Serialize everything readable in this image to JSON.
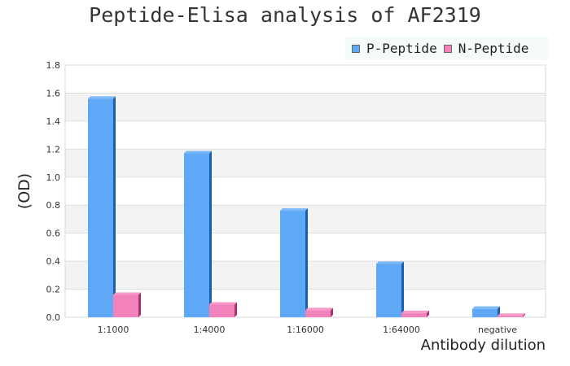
{
  "chart_data": {
    "type": "bar",
    "title": "Peptide-Elisa analysis of AF2319",
    "xlabel": "Antibody dilution",
    "ylabel": "(OD)",
    "categories": [
      "1:1000",
      "1:4000",
      "1:16000",
      "1:64000",
      "negative"
    ],
    "series": [
      {
        "name": "P-Peptide",
        "values": [
          1.56,
          1.17,
          0.76,
          0.38,
          0.06
        ],
        "color": "#5fa8f5"
      },
      {
        "name": "N-Peptide",
        "values": [
          0.16,
          0.09,
          0.05,
          0.03,
          0.01
        ],
        "color": "#f282bb"
      }
    ],
    "ylim": [
      0,
      1.8
    ],
    "yticks": [
      "0.0",
      "0.2",
      "0.4",
      "0.6",
      "0.8",
      "1.0",
      "1.2",
      "1.4",
      "1.6",
      "1.8"
    ],
    "grid": true,
    "legend_position": "top-right"
  }
}
